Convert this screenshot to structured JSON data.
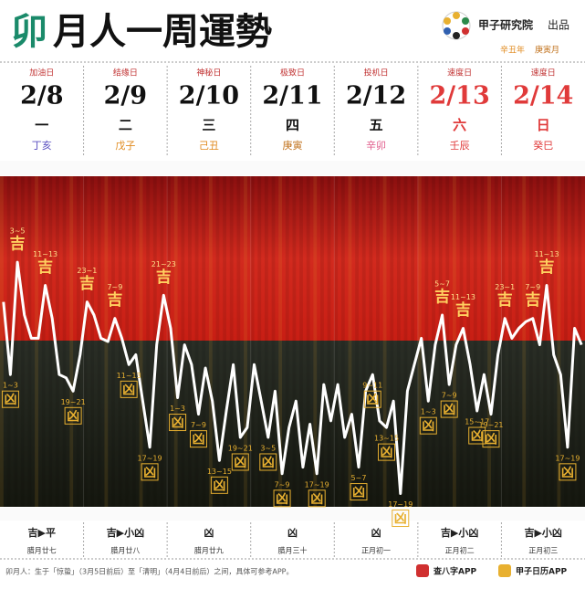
{
  "header": {
    "title_sign": "卯",
    "title_rest": "月人一周運勢",
    "publisher": "甲子研究院",
    "publisher_suffix": "出品",
    "year": "辛丑年",
    "month": "庚寅月"
  },
  "chart_data": {
    "type": "line",
    "ylim": [
      0,
      100
    ],
    "line_color": "#ffffff",
    "days": [
      {
        "label": "加油日",
        "date": "2/8",
        "weekday": "一",
        "ganzhi": "丁亥",
        "color": "#111111",
        "ganzhi_color": "#5a4fc0",
        "summary": "吉▶平",
        "lunar": "腊月廿七",
        "values": [
          62,
          40,
          74,
          58,
          51,
          51,
          67,
          57,
          40,
          39,
          35,
          46
        ],
        "annotations": [
          {
            "time": "1~3",
            "label": "凶"
          },
          {
            "time": "3~5",
            "label": "吉"
          },
          {
            "time": "11~13",
            "label": "吉"
          },
          {
            "time": "19~21",
            "label": "凶"
          }
        ]
      },
      {
        "label": "结缘日",
        "date": "2/9",
        "weekday": "二",
        "ganzhi": "戊子",
        "color": "#111111",
        "ganzhi_color": "#e08a1e",
        "summary": "吉▶小凶",
        "lunar": "腊月廿八",
        "values": [
          62,
          58,
          51,
          50,
          57,
          51,
          43,
          46,
          32,
          18,
          49,
          64
        ],
        "annotations": [
          {
            "time": "23~1",
            "label": "吉"
          },
          {
            "time": "7~9",
            "label": "吉"
          },
          {
            "time": "11~13",
            "label": "凶"
          },
          {
            "time": "17~19",
            "label": "凶"
          },
          {
            "time": "21~23",
            "label": "吉"
          }
        ]
      },
      {
        "label": "神秘日",
        "date": "2/10",
        "weekday": "三",
        "ganzhi": "己丑",
        "color": "#111111",
        "ganzhi_color": "#e08a1e",
        "summary": "凶",
        "lunar": "腊月廿九",
        "values": [
          54,
          33,
          49,
          43,
          28,
          42,
          32,
          14,
          29,
          43,
          21,
          24
        ],
        "annotations": [
          {
            "time": "1~3",
            "label": "凶"
          },
          {
            "time": "7~9",
            "label": "凶"
          },
          {
            "time": "13~15",
            "label": "凶"
          },
          {
            "time": "19~21",
            "label": "凶"
          }
        ]
      },
      {
        "label": "极致日",
        "date": "2/11",
        "weekday": "四",
        "ganzhi": "庚寅",
        "color": "#111111",
        "ganzhi_color": "#c0701a",
        "summary": "凶",
        "lunar": "腊月三十",
        "values": [
          43,
          32,
          21,
          35,
          10,
          24,
          32,
          12,
          25,
          10,
          37,
          26
        ],
        "annotations": [
          {
            "time": "3~5",
            "label": "凶"
          },
          {
            "time": "7~9",
            "label": "凶"
          },
          {
            "time": "17~19",
            "label": "凶"
          }
        ]
      },
      {
        "label": "投机日",
        "date": "2/12",
        "weekday": "五",
        "ganzhi": "辛卯",
        "color": "#111111",
        "ganzhi_color": "#e05a8a",
        "summary": "凶",
        "lunar": "正月初一",
        "values": [
          37,
          21,
          28,
          12,
          35,
          40,
          26,
          24,
          32,
          4,
          35,
          43
        ],
        "annotations": [
          {
            "time": "5~7",
            "label": "凶"
          },
          {
            "time": "9~11",
            "label": "凶"
          },
          {
            "time": "13~15",
            "label": "凶"
          },
          {
            "time": "17~19",
            "label": "凶"
          }
        ]
      },
      {
        "label": "速度日",
        "date": "2/13",
        "weekday": "六",
        "ganzhi": "壬辰",
        "color": "#e03a3a",
        "ganzhi_color": "#e03a3a",
        "summary": "吉▶小凶",
        "lunar": "正月初二",
        "values": [
          51,
          32,
          49,
          58,
          37,
          49,
          54,
          43,
          29,
          40,
          28,
          46
        ],
        "annotations": [
          {
            "time": "1~3",
            "label": "凶"
          },
          {
            "time": "5~7",
            "label": "吉"
          },
          {
            "time": "7~9",
            "label": "凶"
          },
          {
            "time": "11~13",
            "label": "吉"
          },
          {
            "time": "15~17",
            "label": "凶"
          },
          {
            "time": "19~21",
            "label": "凶"
          }
        ]
      },
      {
        "label": "速度日",
        "date": "2/14",
        "weekday": "日",
        "ganzhi": "癸巳",
        "color": "#e03a3a",
        "ganzhi_color": "#e03a3a",
        "summary": "吉▶小凶",
        "lunar": "正月初三",
        "values": [
          57,
          51,
          54,
          56,
          57,
          49,
          67,
          46,
          40,
          18,
          54,
          49
        ],
        "annotations": [
          {
            "time": "23~1",
            "label": "吉"
          },
          {
            "time": "7~9",
            "label": "吉"
          },
          {
            "time": "11~13",
            "label": "吉"
          },
          {
            "time": "17~19",
            "label": "凶"
          }
        ]
      }
    ]
  },
  "footer": {
    "note": "卯月人：生于「惊蛰」（3月5日前后）至「清明」（4月4日前后）之间，具体可参考APP。",
    "app1": "查八字APP",
    "app2": "甲子日历APP"
  }
}
